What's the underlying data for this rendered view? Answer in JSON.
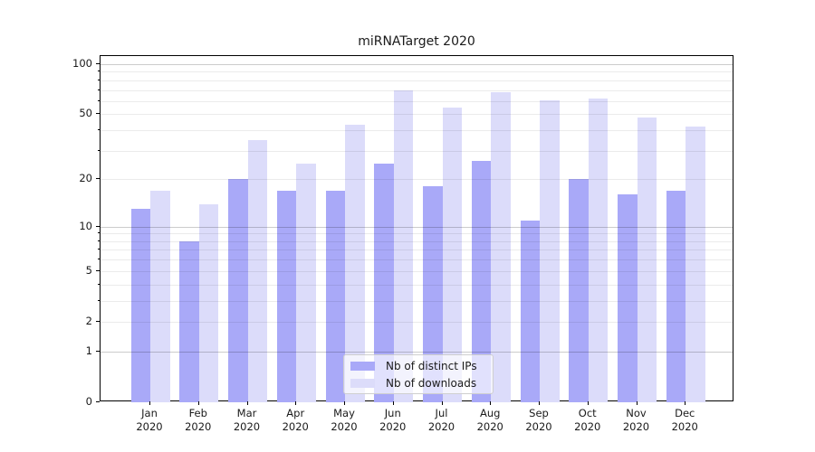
{
  "title": "miRNATarget 2020",
  "chart_data": {
    "type": "bar",
    "title": "miRNATarget 2020",
    "categories": [
      "Jan",
      "Feb",
      "Mar",
      "Apr",
      "May",
      "Jun",
      "Jul",
      "Aug",
      "Sep",
      "Oct",
      "Nov",
      "Dec"
    ],
    "category_year": "2020",
    "series": [
      {
        "name": "Nb of distinct IPs",
        "color": "#a9a9f8",
        "values": [
          13,
          8,
          20,
          17,
          17,
          25,
          18,
          26,
          11,
          20,
          16,
          17
        ]
      },
      {
        "name": "Nb of downloads",
        "color": "#dcdcfa",
        "values": [
          17,
          14,
          35,
          25,
          43,
          70,
          55,
          68,
          61,
          62,
          48,
          42
        ]
      }
    ],
    "yscale": "log1p",
    "ylim": [
      0,
      112
    ],
    "yticks_labeled": [
      0,
      1,
      2,
      5,
      10,
      20,
      50,
      100
    ],
    "grid_major_values": [
      1,
      10,
      100
    ],
    "grid_minor_values": [
      2,
      3,
      4,
      5,
      6,
      7,
      8,
      9,
      20,
      30,
      40,
      50,
      60,
      70,
      80,
      90
    ],
    "grid": true,
    "legend_position": "lower center",
    "xlabel": "",
    "ylabel": ""
  },
  "colors": {
    "grid_major": "#cccccc",
    "grid_minor": "#ebebeb",
    "spine": "#000000",
    "text": "#1a1a1a",
    "background": "#ffffff"
  }
}
